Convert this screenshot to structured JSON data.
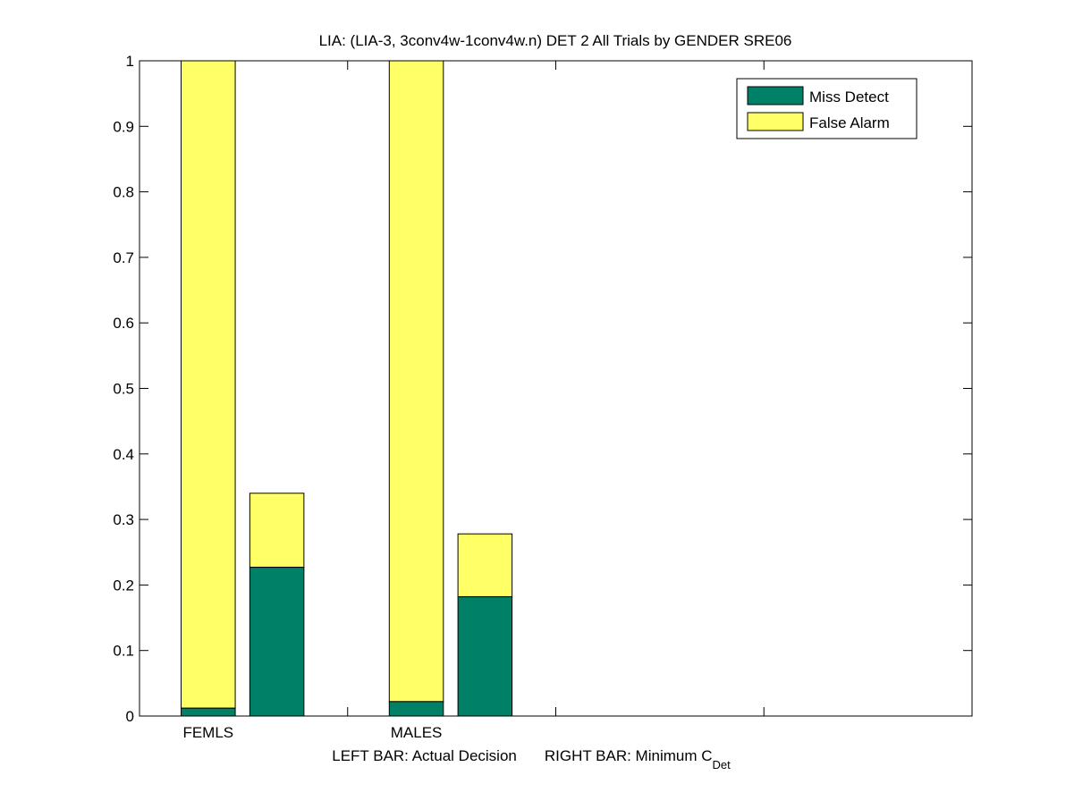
{
  "chart_data": {
    "type": "bar",
    "stacked": true,
    "title": "LIA: (LIA-3, 3conv4w-1conv4w.n) DET 2 All Trials by GENDER SRE06",
    "xlabel": {
      "left": "LEFT BAR: Actual Decision",
      "right": "RIGHT BAR: Minimum C",
      "right_subscript": "Det"
    },
    "ylabel": "",
    "ylim": [
      0,
      1
    ],
    "yticks": [
      "0",
      "0.1",
      "0.2",
      "0.3",
      "0.4",
      "0.5",
      "0.6",
      "0.7",
      "0.8",
      "0.9",
      "1"
    ],
    "xlim": [
      0,
      4
    ],
    "xticks": [
      1,
      2,
      3
    ],
    "categories": [
      "FEMLS",
      "MALES"
    ],
    "category_positions": [
      0.33,
      1.33
    ],
    "grid": false,
    "legend_position": "top-right",
    "series": [
      {
        "name": "Miss Detect",
        "color": "#008066"
      },
      {
        "name": "False Alarm",
        "color": "#ffff66"
      }
    ],
    "bars": [
      {
        "category": "FEMLS",
        "bar": "Actual Decision",
        "x": 0.33,
        "miss_detect": 0.012,
        "false_alarm": 0.988
      },
      {
        "category": "FEMLS",
        "bar": "Minimum C_Det",
        "x": 0.66,
        "miss_detect": 0.227,
        "false_alarm": 0.113
      },
      {
        "category": "MALES",
        "bar": "Actual Decision",
        "x": 1.33,
        "miss_detect": 0.022,
        "false_alarm": 0.978
      },
      {
        "category": "MALES",
        "bar": "Minimum C_Det",
        "x": 1.66,
        "miss_detect": 0.182,
        "false_alarm": 0.096
      }
    ],
    "bar_width": 0.26
  }
}
